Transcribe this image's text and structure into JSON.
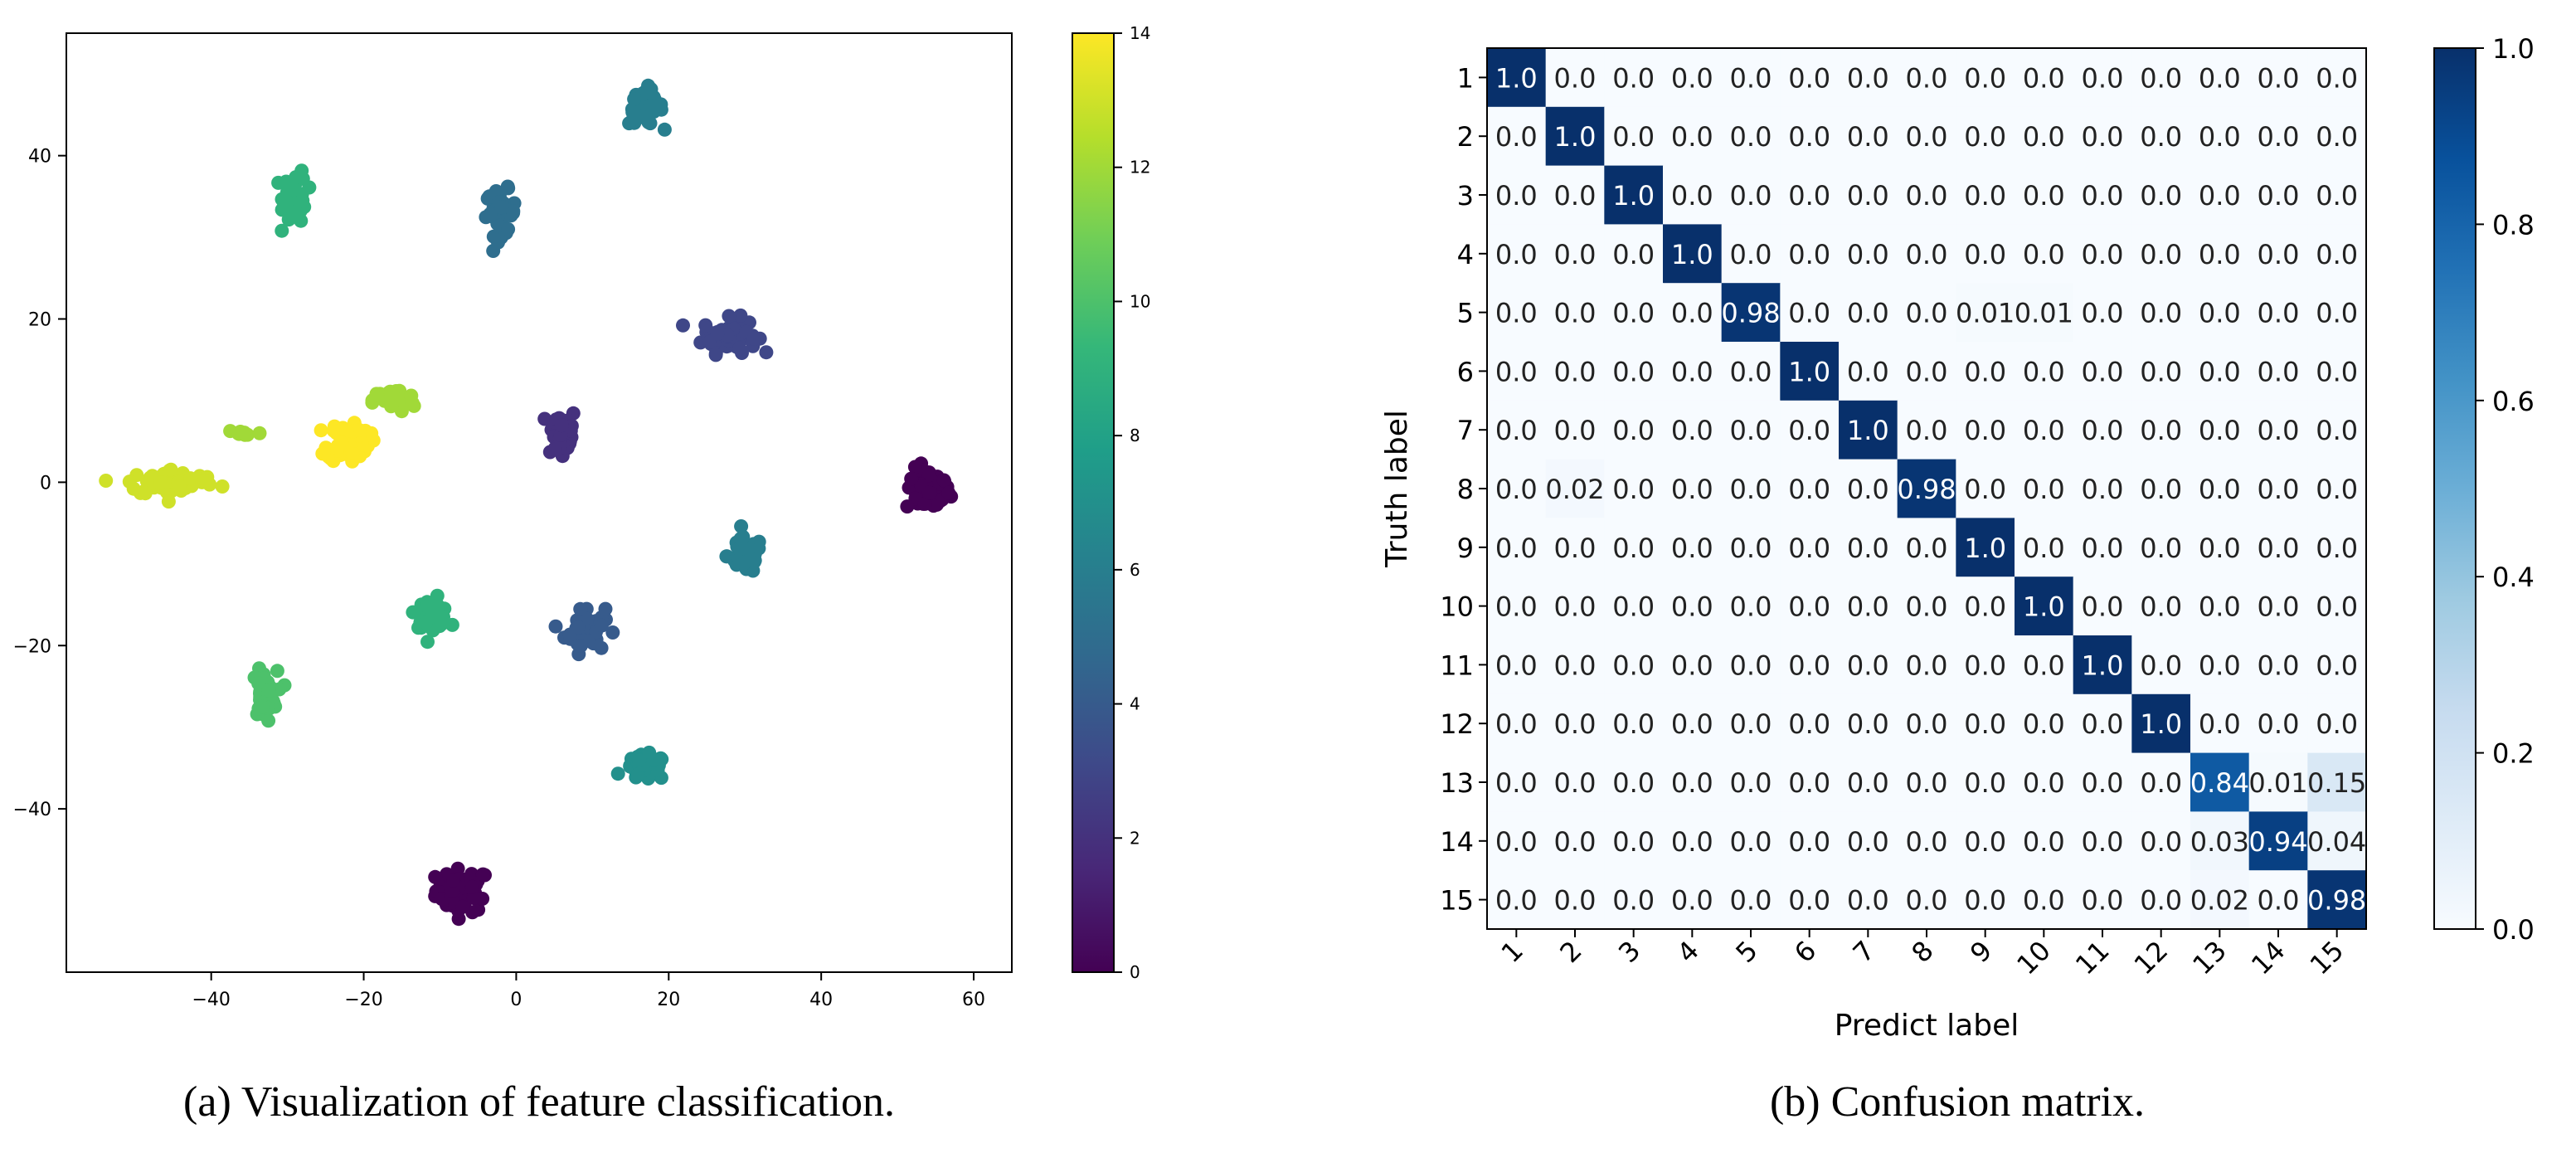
{
  "figure": {
    "caption_a": "(a) Visualization of feature classification.",
    "caption_b": "(b) Confusion matrix."
  },
  "colors": {
    "viridis": [
      "#440154",
      "#482878",
      "#3e4989",
      "#31688e",
      "#26828e",
      "#1f9e89",
      "#35b779",
      "#6ece58",
      "#b5de2b",
      "#fde725"
    ],
    "blues": [
      "#f7fbff",
      "#deebf7",
      "#c6dbef",
      "#9ecae1",
      "#6baed6",
      "#4292c6",
      "#2171b5",
      "#08519c",
      "#08306b"
    ]
  },
  "chart_data": [
    {
      "type": "scatter",
      "title": "",
      "xlabel": "",
      "ylabel": "",
      "xlim": [
        -59,
        65
      ],
      "ylim": [
        -60,
        55
      ],
      "xticks": [
        -40,
        -20,
        0,
        20,
        40,
        60
      ],
      "yticks": [
        -40,
        -20,
        0,
        20,
        40
      ],
      "colorbar": {
        "range": [
          0,
          14
        ],
        "ticks": [
          0,
          2,
          4,
          6,
          8,
          10,
          12,
          14
        ],
        "colormap": "viridis"
      },
      "clusters": [
        {
          "class": 0,
          "center": [
            -7,
            -50
          ],
          "spread": [
            3.2,
            2.4
          ],
          "count": 60
        },
        {
          "class": 0,
          "center": [
            54,
            -1
          ],
          "spread": [
            2.6,
            2.4
          ],
          "count": 55
        },
        {
          "class": 2,
          "center": [
            6,
            6
          ],
          "spread": [
            1.8,
            3.0
          ],
          "count": 40
        },
        {
          "class": 3,
          "center": [
            28,
            18
          ],
          "spread": [
            3.2,
            1.9
          ],
          "count": 55
        },
        {
          "class": 4,
          "center": [
            9,
            -18
          ],
          "spread": [
            2.4,
            2.6
          ],
          "count": 45
        },
        {
          "class": 5,
          "center": [
            -2,
            33
          ],
          "spread": [
            1.8,
            2.5
          ],
          "count": 45
        },
        {
          "class": 6,
          "center": [
            17,
            46
          ],
          "spread": [
            2.0,
            2.0
          ],
          "count": 50
        },
        {
          "class": 6,
          "center": [
            30,
            -9
          ],
          "spread": [
            2.1,
            2.0
          ],
          "count": 50
        },
        {
          "class": 7,
          "center": [
            17,
            -35
          ],
          "spread": [
            2.5,
            1.4
          ],
          "count": 40
        },
        {
          "class": 9,
          "center": [
            -29,
            35
          ],
          "spread": [
            1.4,
            3.0
          ],
          "count": 50
        },
        {
          "class": 9,
          "center": [
            -11,
            -16
          ],
          "spread": [
            2.0,
            1.6
          ],
          "count": 45
        },
        {
          "class": 10,
          "center": [
            -33,
            -26
          ],
          "spread": [
            1.5,
            2.6
          ],
          "count": 45
        },
        {
          "class": 12,
          "center": [
            -16,
            10
          ],
          "spread": [
            2.5,
            1.3
          ],
          "count": 35
        },
        {
          "class": 12,
          "center": [
            -36,
            6
          ],
          "spread": [
            2.5,
            0.6
          ],
          "count": 10
        },
        {
          "class": 13,
          "center": [
            -45,
            0
          ],
          "spread": [
            5.5,
            1.5
          ],
          "count": 60
        },
        {
          "class": 14,
          "center": [
            -22,
            5
          ],
          "spread": [
            2.5,
            2.3
          ],
          "count": 60
        }
      ]
    },
    {
      "type": "heatmap",
      "xlabel": "Predict label",
      "ylabel": "Truth label",
      "labels": [
        "1",
        "2",
        "3",
        "4",
        "5",
        "6",
        "7",
        "8",
        "9",
        "10",
        "11",
        "12",
        "13",
        "14",
        "15"
      ],
      "cells": [
        [
          "1.0",
          "0.0",
          "0.0",
          "0.0",
          "0.0",
          "0.0",
          "0.0",
          "0.0",
          "0.0",
          "0.0",
          "0.0",
          "0.0",
          "0.0",
          "0.0",
          "0.0"
        ],
        [
          "0.0",
          "1.0",
          "0.0",
          "0.0",
          "0.0",
          "0.0",
          "0.0",
          "0.0",
          "0.0",
          "0.0",
          "0.0",
          "0.0",
          "0.0",
          "0.0",
          "0.0"
        ],
        [
          "0.0",
          "0.0",
          "1.0",
          "0.0",
          "0.0",
          "0.0",
          "0.0",
          "0.0",
          "0.0",
          "0.0",
          "0.0",
          "0.0",
          "0.0",
          "0.0",
          "0.0"
        ],
        [
          "0.0",
          "0.0",
          "0.0",
          "1.0",
          "0.0",
          "0.0",
          "0.0",
          "0.0",
          "0.0",
          "0.0",
          "0.0",
          "0.0",
          "0.0",
          "0.0",
          "0.0"
        ],
        [
          "0.0",
          "0.0",
          "0.0",
          "0.0",
          "0.98",
          "0.0",
          "0.0",
          "0.0",
          "0.01",
          "0.01",
          "0.0",
          "0.0",
          "0.0",
          "0.0",
          "0.0"
        ],
        [
          "0.0",
          "0.0",
          "0.0",
          "0.0",
          "0.0",
          "1.0",
          "0.0",
          "0.0",
          "0.0",
          "0.0",
          "0.0",
          "0.0",
          "0.0",
          "0.0",
          "0.0"
        ],
        [
          "0.0",
          "0.0",
          "0.0",
          "0.0",
          "0.0",
          "0.0",
          "1.0",
          "0.0",
          "0.0",
          "0.0",
          "0.0",
          "0.0",
          "0.0",
          "0.0",
          "0.0"
        ],
        [
          "0.0",
          "0.02",
          "0.0",
          "0.0",
          "0.0",
          "0.0",
          "0.0",
          "0.98",
          "0.0",
          "0.0",
          "0.0",
          "0.0",
          "0.0",
          "0.0",
          "0.0"
        ],
        [
          "0.0",
          "0.0",
          "0.0",
          "0.0",
          "0.0",
          "0.0",
          "0.0",
          "0.0",
          "1.0",
          "0.0",
          "0.0",
          "0.0",
          "0.0",
          "0.0",
          "0.0"
        ],
        [
          "0.0",
          "0.0",
          "0.0",
          "0.0",
          "0.0",
          "0.0",
          "0.0",
          "0.0",
          "0.0",
          "1.0",
          "0.0",
          "0.0",
          "0.0",
          "0.0",
          "0.0"
        ],
        [
          "0.0",
          "0.0",
          "0.0",
          "0.0",
          "0.0",
          "0.0",
          "0.0",
          "0.0",
          "0.0",
          "0.0",
          "1.0",
          "0.0",
          "0.0",
          "0.0",
          "0.0"
        ],
        [
          "0.0",
          "0.0",
          "0.0",
          "0.0",
          "0.0",
          "0.0",
          "0.0",
          "0.0",
          "0.0",
          "0.0",
          "0.0",
          "1.0",
          "0.0",
          "0.0",
          "0.0"
        ],
        [
          "0.0",
          "0.0",
          "0.0",
          "0.0",
          "0.0",
          "0.0",
          "0.0",
          "0.0",
          "0.0",
          "0.0",
          "0.0",
          "0.0",
          "0.84",
          "0.01",
          "0.15"
        ],
        [
          "0.0",
          "0.0",
          "0.0",
          "0.0",
          "0.0",
          "0.0",
          "0.0",
          "0.0",
          "0.0",
          "0.0",
          "0.0",
          "0.0",
          "0.03",
          "0.94",
          "0.04"
        ],
        [
          "0.0",
          "0.0",
          "0.0",
          "0.0",
          "0.0",
          "0.0",
          "0.0",
          "0.0",
          "0.0",
          "0.0",
          "0.0",
          "0.0",
          "0.02",
          "0.0",
          "0.98"
        ]
      ],
      "colorbar": {
        "range": [
          0.0,
          1.0
        ],
        "ticks": [
          "0.0",
          "0.2",
          "0.4",
          "0.6",
          "0.8",
          "1.0"
        ],
        "colormap": "Blues"
      }
    }
  ]
}
